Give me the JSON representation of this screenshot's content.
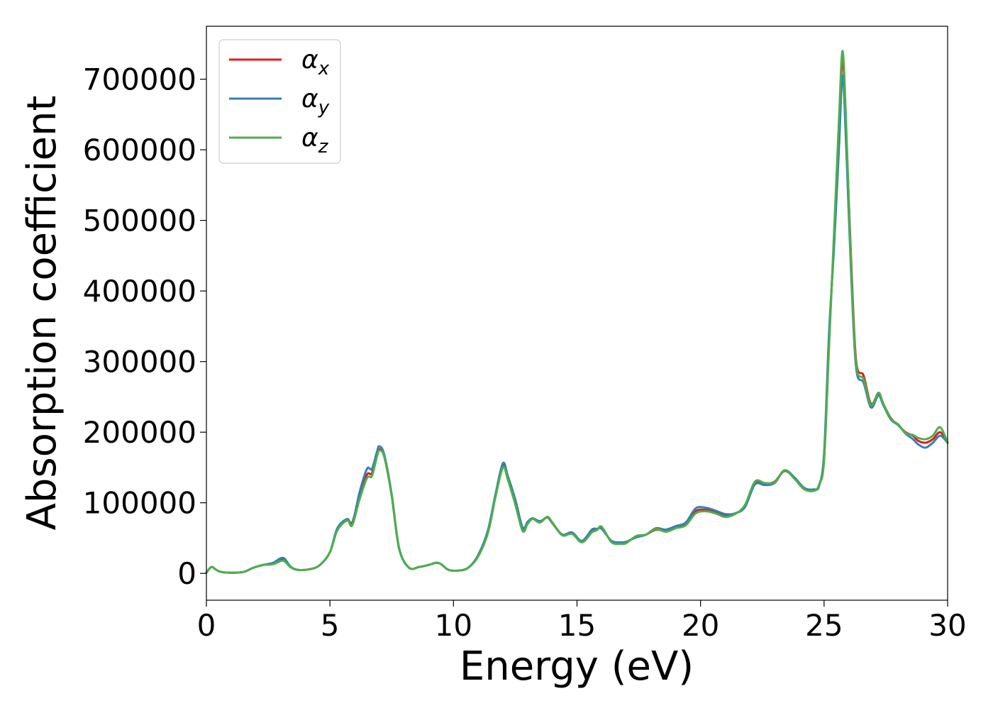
{
  "chart_data": {
    "type": "line",
    "title": "",
    "xlabel": "Energy (eV)",
    "ylabel": "Absorption coefficient",
    "xlim": [
      0,
      30
    ],
    "ylim": [
      -38000,
      775000
    ],
    "xticks": [
      0,
      5,
      10,
      15,
      20,
      25,
      30
    ],
    "yticks": [
      0,
      100000,
      200000,
      300000,
      400000,
      500000,
      600000,
      700000
    ],
    "grid": false,
    "legend_placement": "top-left",
    "series": [
      {
        "name": "α_x",
        "legend_base": "α",
        "legend_sub": "x",
        "color": "#e41a1c",
        "x": [
          0,
          0.2,
          0.4,
          0.6,
          1.0,
          1.5,
          1.9,
          2.3,
          2.7,
          3.1,
          3.4,
          3.7,
          4.2,
          4.6,
          5.0,
          5.3,
          5.7,
          5.9,
          6.2,
          6.5,
          6.7,
          6.9,
          7.0,
          7.2,
          7.5,
          7.8,
          8.2,
          8.6,
          9.0,
          9.3,
          9.5,
          9.8,
          10.2,
          10.6,
          11.0,
          11.4,
          11.7,
          12.0,
          12.2,
          12.5,
          12.8,
          13.0,
          13.2,
          13.5,
          13.8,
          14.0,
          14.4,
          14.8,
          15.2,
          15.6,
          15.8,
          16.0,
          16.4,
          16.8,
          17.0,
          17.4,
          17.8,
          18.2,
          18.6,
          19.0,
          19.4,
          19.8,
          20.2,
          20.6,
          21.0,
          21.4,
          21.8,
          22.2,
          22.6,
          23.0,
          23.4,
          23.8,
          24.2,
          24.6,
          24.8,
          25.0,
          25.2,
          25.4,
          25.6,
          25.75,
          25.9,
          26.1,
          26.3,
          26.6,
          26.9,
          27.2,
          27.4,
          27.7,
          28.0,
          28.3,
          28.6,
          28.8,
          29.1,
          29.4,
          29.7,
          30.0
        ],
        "values": [
          1000,
          9000,
          5000,
          2000,
          1000,
          2000,
          8000,
          12000,
          14000,
          20000,
          9000,
          5000,
          6000,
          12000,
          30000,
          62000,
          76000,
          72000,
          110000,
          140000,
          142000,
          170000,
          176000,
          165000,
          110000,
          35000,
          8000,
          9000,
          12000,
          15000,
          13000,
          5000,
          4000,
          8000,
          25000,
          60000,
          110000,
          153000,
          135000,
          100000,
          62000,
          72000,
          78000,
          73000,
          80000,
          72000,
          55000,
          57000,
          45000,
          60000,
          62000,
          65000,
          45000,
          42000,
          44000,
          52000,
          55000,
          62000,
          60000,
          65000,
          70000,
          88000,
          90000,
          87000,
          82000,
          85000,
          95000,
          128000,
          127000,
          130000,
          145000,
          135000,
          120000,
          118000,
          125000,
          165000,
          330000,
          470000,
          620000,
          730000,
          620000,
          440000,
          300000,
          280000,
          240000,
          255000,
          240000,
          220000,
          210000,
          200000,
          195000,
          188000,
          185000,
          190000,
          200000,
          185000
        ]
      },
      {
        "name": "α_y",
        "legend_base": "α",
        "legend_sub": "y",
        "color": "#377eb8",
        "x": [
          0,
          0.2,
          0.4,
          0.6,
          1.0,
          1.5,
          1.9,
          2.3,
          2.7,
          3.1,
          3.4,
          3.7,
          4.2,
          4.6,
          5.0,
          5.3,
          5.7,
          5.9,
          6.2,
          6.5,
          6.7,
          6.9,
          7.0,
          7.2,
          7.5,
          7.8,
          8.2,
          8.6,
          9.0,
          9.3,
          9.5,
          9.8,
          10.2,
          10.6,
          11.0,
          11.4,
          11.7,
          12.0,
          12.2,
          12.5,
          12.8,
          13.0,
          13.2,
          13.5,
          13.8,
          14.0,
          14.4,
          14.8,
          15.2,
          15.6,
          15.8,
          16.0,
          16.4,
          16.8,
          17.0,
          17.4,
          17.8,
          18.2,
          18.6,
          19.0,
          19.4,
          19.8,
          20.2,
          20.6,
          21.0,
          21.4,
          21.8,
          22.2,
          22.6,
          23.0,
          23.4,
          23.8,
          24.2,
          24.6,
          24.8,
          25.0,
          25.2,
          25.4,
          25.6,
          25.75,
          25.9,
          26.1,
          26.3,
          26.6,
          26.9,
          27.2,
          27.4,
          27.7,
          28.0,
          28.3,
          28.6,
          28.8,
          29.1,
          29.4,
          29.7,
          30.0
        ],
        "values": [
          1000,
          9000,
          5000,
          2000,
          1000,
          2000,
          8000,
          12000,
          15000,
          22000,
          10000,
          5000,
          6000,
          12000,
          30000,
          64000,
          77000,
          70000,
          115000,
          148000,
          148000,
          172000,
          180000,
          168000,
          112000,
          36000,
          8000,
          9000,
          12000,
          15000,
          13000,
          5000,
          4000,
          8000,
          26000,
          62000,
          112000,
          156000,
          138000,
          105000,
          65000,
          73000,
          78000,
          74000,
          79000,
          71000,
          55000,
          58000,
          46000,
          62000,
          63000,
          63000,
          46000,
          44000,
          45000,
          51000,
          55000,
          64000,
          62000,
          67000,
          72000,
          92000,
          93000,
          89000,
          84000,
          85000,
          94000,
          126000,
          125000,
          128000,
          146000,
          136000,
          121000,
          119000,
          124000,
          170000,
          340000,
          460000,
          600000,
          705000,
          600000,
          420000,
          290000,
          270000,
          235000,
          252000,
          238000,
          218000,
          210000,
          198000,
          190000,
          183000,
          178000,
          185000,
          195000,
          185000
        ]
      },
      {
        "name": "α_z",
        "legend_base": "α",
        "legend_sub": "z",
        "color": "#4daf4a",
        "x": [
          0,
          0.2,
          0.4,
          0.6,
          1.0,
          1.5,
          1.9,
          2.3,
          2.7,
          3.1,
          3.4,
          3.7,
          4.2,
          4.6,
          5.0,
          5.3,
          5.7,
          5.9,
          6.2,
          6.5,
          6.7,
          6.9,
          7.0,
          7.2,
          7.5,
          7.8,
          8.2,
          8.6,
          9.0,
          9.3,
          9.5,
          9.8,
          10.2,
          10.6,
          11.0,
          11.4,
          11.7,
          12.0,
          12.2,
          12.5,
          12.8,
          13.0,
          13.2,
          13.5,
          13.8,
          14.0,
          14.4,
          14.8,
          15.2,
          15.6,
          15.8,
          16.0,
          16.4,
          16.8,
          17.0,
          17.4,
          17.8,
          18.2,
          18.6,
          19.0,
          19.4,
          19.8,
          20.2,
          20.6,
          21.0,
          21.4,
          21.8,
          22.2,
          22.6,
          23.0,
          23.4,
          23.8,
          24.2,
          24.6,
          24.8,
          25.0,
          25.2,
          25.4,
          25.6,
          25.75,
          25.9,
          26.1,
          26.3,
          26.6,
          26.9,
          27.2,
          27.4,
          27.7,
          28.0,
          28.3,
          28.6,
          28.8,
          29.1,
          29.4,
          29.7,
          30.0
        ],
        "values": [
          1000,
          9000,
          5000,
          2000,
          1000,
          2000,
          8000,
          12000,
          13000,
          18000,
          9000,
          5000,
          6000,
          12000,
          30000,
          61000,
          75000,
          68000,
          105000,
          135000,
          138000,
          165000,
          174000,
          165000,
          110000,
          35000,
          8000,
          9000,
          12000,
          15000,
          13000,
          5000,
          4000,
          8000,
          24000,
          58000,
          108000,
          150000,
          133000,
          98000,
          60000,
          70000,
          77000,
          72000,
          80000,
          72000,
          54000,
          56000,
          44000,
          58000,
          61000,
          66000,
          44000,
          42000,
          43000,
          53000,
          55000,
          63000,
          59000,
          64000,
          68000,
          85000,
          88000,
          85000,
          80000,
          84000,
          97000,
          130000,
          128000,
          129000,
          146000,
          134000,
          119000,
          117000,
          126000,
          160000,
          320000,
          480000,
          640000,
          740000,
          630000,
          430000,
          295000,
          275000,
          238000,
          256000,
          240000,
          219000,
          211000,
          199000,
          196000,
          192000,
          190000,
          195000,
          207000,
          185000
        ]
      }
    ]
  }
}
